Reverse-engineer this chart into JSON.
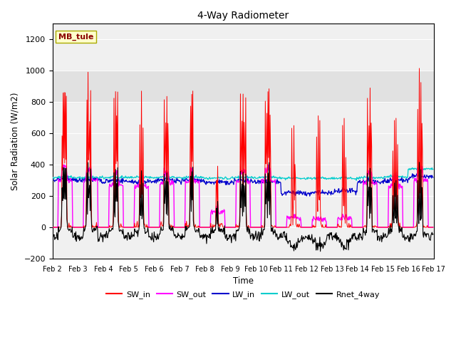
{
  "title": "4-Way Radiometer",
  "xlabel": "Time",
  "ylabel": "Solar Radiation (W/m2)",
  "ylim": [
    -200,
    1300
  ],
  "yticks": [
    -200,
    0,
    200,
    400,
    600,
    800,
    1000,
    1200
  ],
  "xlim": [
    0,
    15
  ],
  "xtick_labels": [
    "Feb 2",
    "Feb 3",
    "Feb 4",
    "Feb 5",
    "Feb 6",
    "Feb 7",
    "Feb 8",
    "Feb 9",
    "Feb 10",
    "Feb 11",
    "Feb 12",
    "Feb 13",
    "Feb 14",
    "Feb 15",
    "Feb 16",
    "Feb 17"
  ],
  "station_label": "MB_tule",
  "colors": {
    "SW_in": "#ff0000",
    "SW_out": "#ff00ff",
    "LW_in": "#0000cc",
    "LW_out": "#00cccc",
    "Rnet_4way": "#000000"
  },
  "legend_labels": [
    "SW_in",
    "SW_out",
    "LW_in",
    "LW_out",
    "Rnet_4way"
  ],
  "figsize": [
    6.4,
    4.8
  ],
  "dpi": 100
}
